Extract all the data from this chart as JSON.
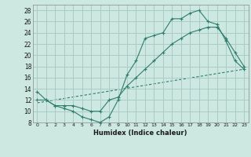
{
  "xlabel": "Humidex (Indice chaleur)",
  "bg_color": "#cce8e0",
  "grid_color": "#aaccc4",
  "line_color": "#2e7d6e",
  "xlim": [
    -0.5,
    23.5
  ],
  "ylim": [
    8,
    29
  ],
  "xticks": [
    0,
    1,
    2,
    3,
    4,
    5,
    6,
    7,
    8,
    9,
    10,
    11,
    12,
    13,
    14,
    15,
    16,
    17,
    18,
    19,
    20,
    21,
    22,
    23
  ],
  "yticks": [
    8,
    10,
    12,
    14,
    16,
    18,
    20,
    22,
    24,
    26,
    28
  ],
  "series1_x": [
    0,
    1,
    2,
    3,
    4,
    5,
    6,
    7,
    8,
    9,
    10,
    11,
    12,
    13,
    14,
    15,
    16,
    17,
    18,
    19,
    20,
    21,
    22,
    23
  ],
  "series1_y": [
    13.5,
    12,
    11,
    10.5,
    10,
    9,
    8.5,
    8,
    9,
    12,
    16.5,
    19,
    23,
    23.5,
    24,
    26.5,
    26.5,
    27.5,
    28,
    26,
    25.5,
    22.5,
    19,
    17.5
  ],
  "series2_x": [
    0,
    1,
    2,
    3,
    4,
    5,
    6,
    7,
    8,
    9,
    10,
    11,
    12,
    13,
    14,
    15,
    16,
    17,
    18,
    19,
    20,
    21,
    22,
    23
  ],
  "series2_y": [
    12,
    12,
    11,
    11,
    11,
    10.5,
    10,
    10,
    12,
    12.5,
    14.5,
    16,
    17.5,
    19,
    20.5,
    22,
    23,
    24,
    24.5,
    25,
    25,
    23,
    20.5,
    18
  ],
  "series3_x": [
    0,
    23
  ],
  "series3_y": [
    11.5,
    17.5
  ]
}
